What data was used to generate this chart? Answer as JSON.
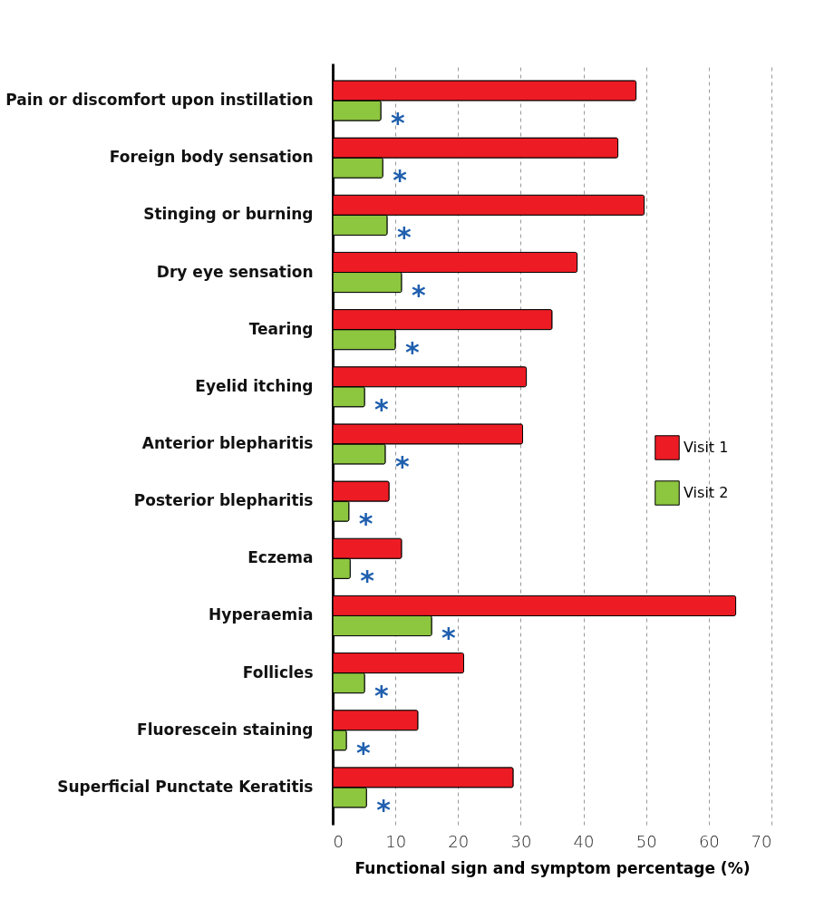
{
  "chart_data": {
    "type": "bar",
    "orientation": "horizontal",
    "categories": [
      "Pain or discomfort upon instillation",
      "Foreign body sensation",
      "Stinging or burning",
      "Dry eye sensation",
      "Tearing",
      "Eyelid itching",
      "Anterior blepharitis",
      "Posterior blepharitis",
      "Eczema",
      "Hyperaemia",
      "Follicles",
      "Fluorescein staining",
      "Superficial Punctate Keratitis"
    ],
    "series": [
      {
        "name": "Visit 1",
        "color": "#ed1c24",
        "values": [
          48.4,
          45.5,
          49.7,
          39,
          35,
          30.9,
          30.3,
          9,
          11,
          64.3,
          20.9,
          13.6,
          28.8
        ]
      },
      {
        "name": "Visit 2",
        "color": "#8dc63f",
        "values": [
          7.7,
          8,
          8.7,
          11,
          10,
          5.1,
          8.4,
          2.6,
          2.8,
          15.8,
          5.1,
          2.2,
          5.4
        ]
      }
    ],
    "xlabel": "Functional sign and symptom percentage (%)",
    "xlim": [
      0,
      70
    ],
    "xticks": [
      0,
      10,
      20,
      30,
      40,
      50,
      60,
      70
    ],
    "grid": "x",
    "legend": "right",
    "annotations": [
      {
        "text": "*",
        "x": 10.4,
        "y": "Pain or discomfort upon instillation"
      },
      {
        "text": "*",
        "x": 10.7,
        "y": "Foreign body sensation"
      },
      {
        "text": "*",
        "x": 11.4,
        "y": "Stinging or burning"
      },
      {
        "text": "*",
        "x": 13.7,
        "y": "Dry eye sensation"
      },
      {
        "text": "*",
        "x": 12.7,
        "y": "Tearing"
      },
      {
        "text": "*",
        "x": 7.8,
        "y": "Eyelid itching"
      },
      {
        "text": "*",
        "x": 11.1,
        "y": "Anterior blepharitis"
      },
      {
        "text": "*",
        "x": 5.3,
        "y": "Posterior blepharitis"
      },
      {
        "text": "*",
        "x": 5.5,
        "y": "Eczema"
      },
      {
        "text": "*",
        "x": 18.5,
        "y": "Hyperaemia"
      },
      {
        "text": "*",
        "x": 7.8,
        "y": "Follicles"
      },
      {
        "text": "*",
        "x": 4.9,
        "y": "Fluorescein staining"
      },
      {
        "text": "*",
        "x": 8.1,
        "y": "Superficial Punctate Keratitis"
      }
    ]
  }
}
